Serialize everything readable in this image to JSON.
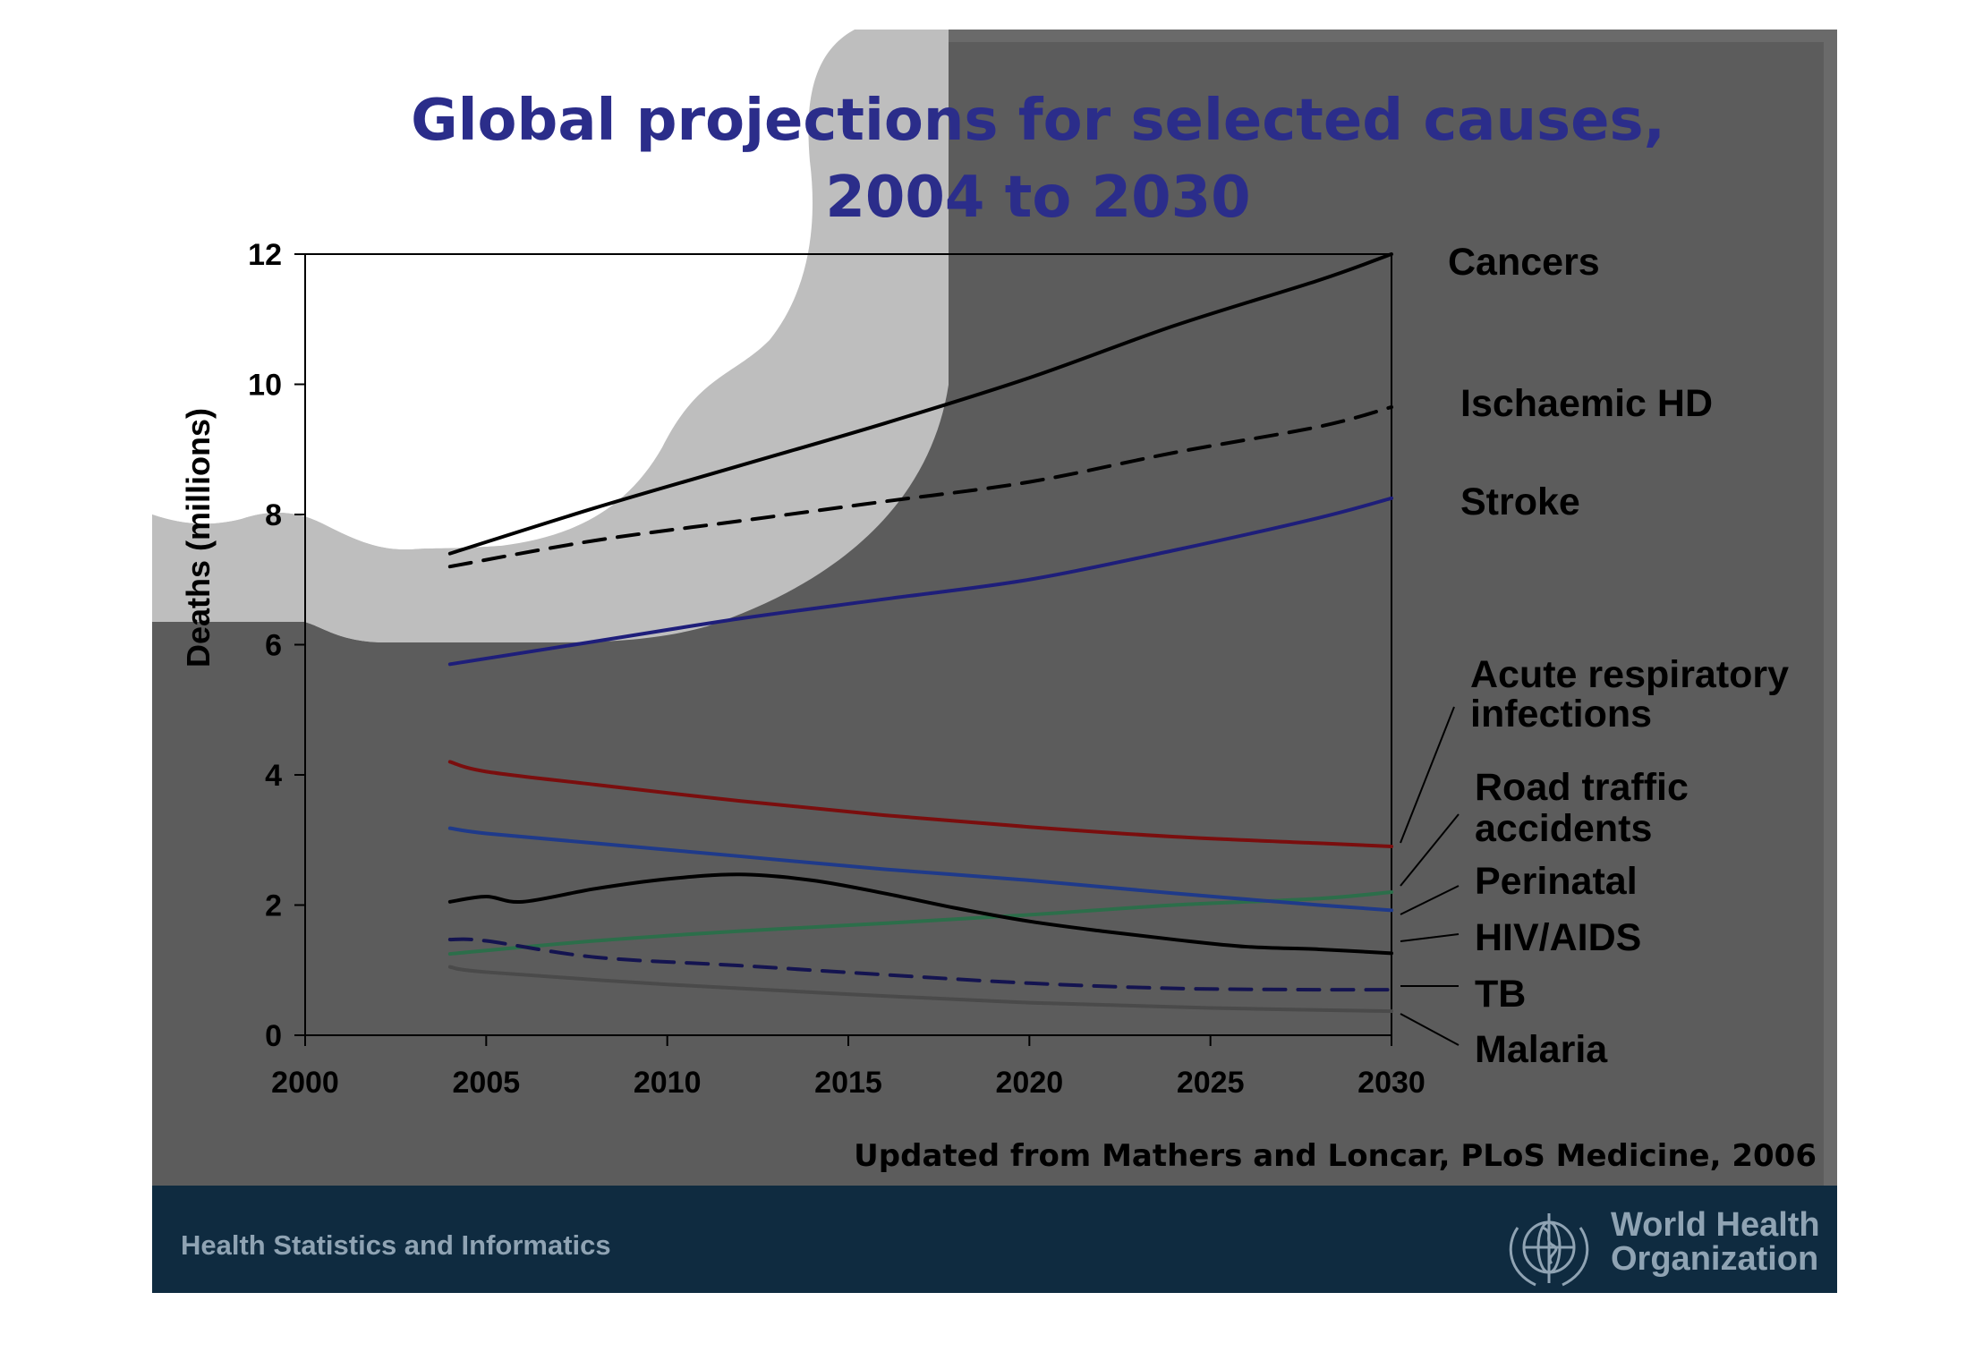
{
  "slide": {
    "title_line1": "Global projections for selected causes,",
    "title_line2": "2004 to 2030",
    "source": "Updated from Mathers and Loncar, PLoS Medicine, 2006",
    "footer_left": "Health Statistics and Informatics",
    "who_line1": "World Health",
    "who_line2": "Organization"
  },
  "chart_data": {
    "type": "line",
    "title": "Global projections for selected causes, 2004 to 2030",
    "xlabel": "",
    "ylabel": "Deaths (millions)",
    "xlim": [
      2000,
      2030
    ],
    "ylim": [
      0,
      12
    ],
    "xticks": [
      "2000",
      "2005",
      "2010",
      "2015",
      "2020",
      "2025",
      "2030"
    ],
    "yticks": [
      "0",
      "2",
      "4",
      "6",
      "8",
      "10",
      "12"
    ],
    "grid": false,
    "legend": "direct labels at right end of lines",
    "series": [
      {
        "name": "Cancers",
        "color": "#000000",
        "dash": false,
        "x": [
          2004,
          2008,
          2012,
          2016,
          2020,
          2024,
          2028,
          2030
        ],
        "y": [
          7.4,
          8.1,
          8.75,
          9.4,
          10.1,
          10.9,
          11.6,
          12.0
        ]
      },
      {
        "name": "Ischaemic HD",
        "color": "#000000",
        "dash": true,
        "x": [
          2004,
          2008,
          2012,
          2016,
          2020,
          2024,
          2028,
          2030
        ],
        "y": [
          7.2,
          7.6,
          7.9,
          8.2,
          8.5,
          8.95,
          9.35,
          9.65
        ]
      },
      {
        "name": "Stroke",
        "color": "#1e1e7a",
        "dash": false,
        "x": [
          2004,
          2008,
          2012,
          2016,
          2020,
          2024,
          2028,
          2030
        ],
        "y": [
          5.7,
          6.05,
          6.4,
          6.7,
          7.0,
          7.45,
          7.95,
          8.25
        ]
      },
      {
        "name": "Acute respiratory infections",
        "color": "#7a0e0e",
        "dash": false,
        "x": [
          2004,
          2005,
          2008,
          2012,
          2016,
          2020,
          2024,
          2028,
          2030
        ],
        "y": [
          4.2,
          4.05,
          3.85,
          3.6,
          3.38,
          3.2,
          3.05,
          2.95,
          2.9
        ]
      },
      {
        "name": "Road traffic accidents",
        "color": "#2c6e4a",
        "dash": false,
        "x": [
          2004,
          2008,
          2012,
          2016,
          2020,
          2024,
          2028,
          2030
        ],
        "y": [
          1.25,
          1.45,
          1.6,
          1.72,
          1.85,
          2.0,
          2.1,
          2.2
        ]
      },
      {
        "name": "Perinatal",
        "color": "#1f3a8a",
        "dash": false,
        "x": [
          2004,
          2005,
          2008,
          2012,
          2016,
          2020,
          2024,
          2028,
          2030
        ],
        "y": [
          3.18,
          3.1,
          2.95,
          2.75,
          2.55,
          2.38,
          2.18,
          2.0,
          1.92
        ]
      },
      {
        "name": "HIV/AIDS",
        "color": "#000000",
        "dash": false,
        "x": [
          2004,
          2005,
          2006,
          2008,
          2010,
          2012,
          2014,
          2016,
          2018,
          2020,
          2022,
          2024,
          2026,
          2028,
          2030
        ],
        "y": [
          2.05,
          2.13,
          2.05,
          2.25,
          2.4,
          2.47,
          2.38,
          2.18,
          1.95,
          1.75,
          1.6,
          1.47,
          1.36,
          1.32,
          1.26
        ]
      },
      {
        "name": "TB",
        "color": "#141450",
        "dash": true,
        "x": [
          2004,
          2005,
          2008,
          2012,
          2016,
          2020,
          2024,
          2028,
          2030
        ],
        "y": [
          1.47,
          1.45,
          1.2,
          1.07,
          0.93,
          0.8,
          0.72,
          0.7,
          0.7
        ]
      },
      {
        "name": "Malaria",
        "color": "#4a4a4a",
        "dash": false,
        "x": [
          2004,
          2005,
          2010,
          2015,
          2020,
          2025,
          2030
        ],
        "y": [
          1.05,
          0.97,
          0.78,
          0.63,
          0.5,
          0.42,
          0.37
        ]
      }
    ]
  },
  "colors": {
    "background": "#5c5c5c",
    "light_swoosh": "#bebebe",
    "white_swoosh": "#ffffff",
    "footer_band": "#0f2b40",
    "title": "#2b2d8a"
  }
}
